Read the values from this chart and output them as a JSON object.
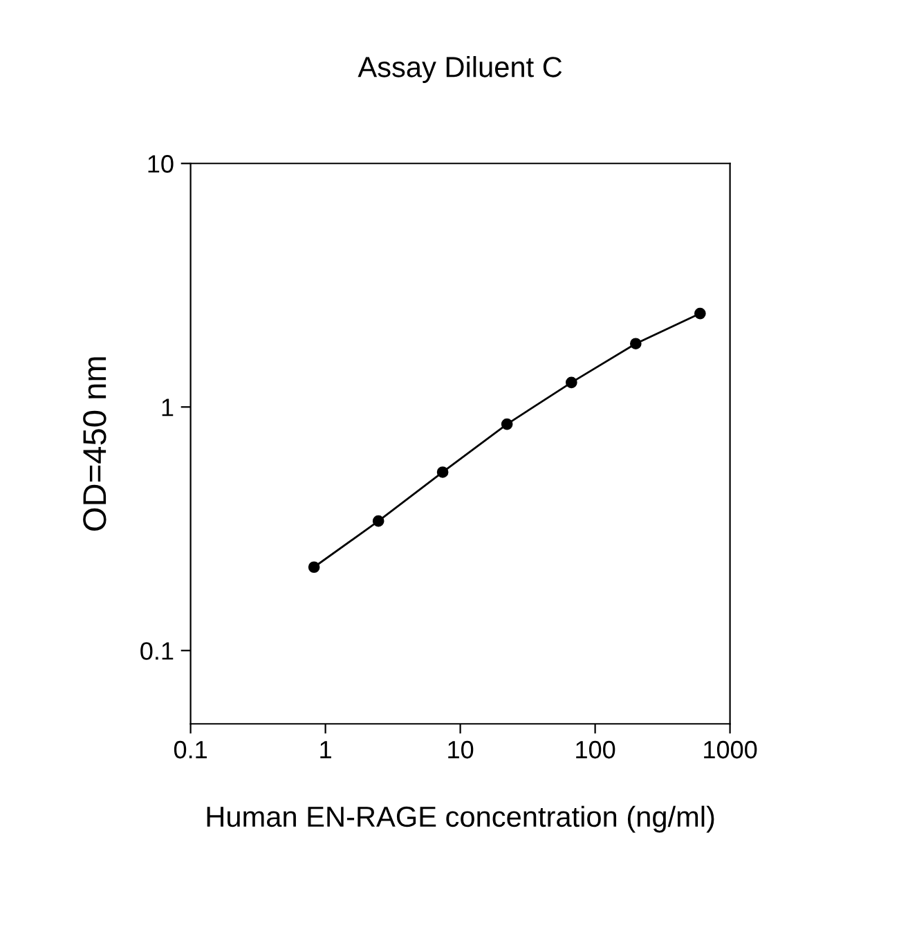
{
  "chart_data": {
    "type": "line",
    "title": "Assay Diluent C",
    "xlabel": "Human EN-RAGE concentration (ng/ml)",
    "ylabel": "OD=450 nm",
    "x": [
      0.823,
      2.47,
      7.4,
      22.2,
      66.7,
      200,
      600
    ],
    "series": [
      {
        "color": "#000000",
        "values": [
          0.22,
          0.34,
          0.54,
          0.85,
          1.26,
          1.82,
          2.42
        ]
      }
    ],
    "log": "xy",
    "xlim": [
      0.1,
      1000
    ],
    "ylim": [
      0.05,
      10
    ],
    "xticks": [
      0.1,
      1,
      10,
      100,
      1000
    ],
    "yticks": [
      0.1,
      1,
      10
    ],
    "marker": "circle",
    "line_style": "solid",
    "grid": false,
    "legend": false
  }
}
